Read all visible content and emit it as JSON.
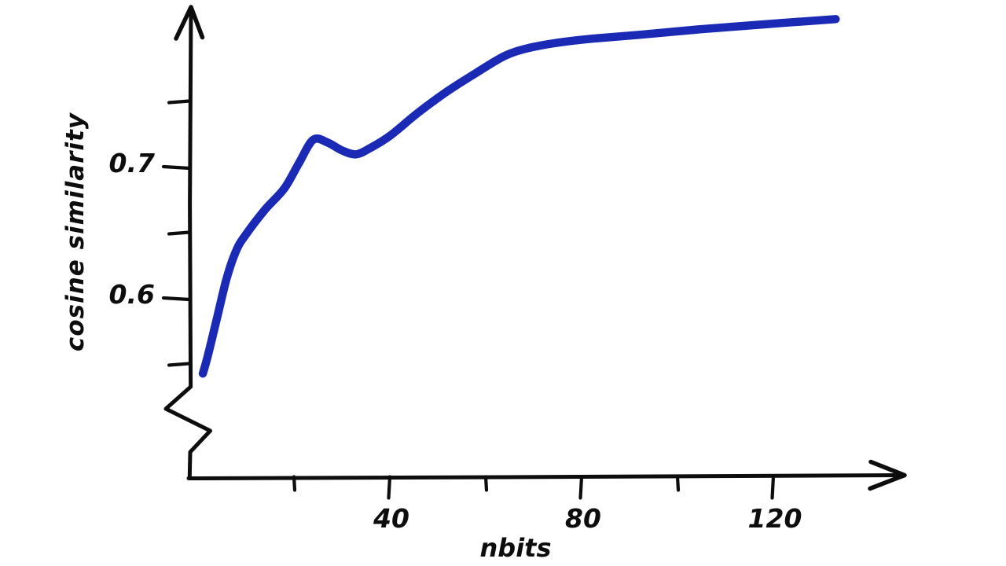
{
  "chart_data": {
    "type": "line",
    "style": "hand-drawn",
    "title": "",
    "xlabel": "nbits",
    "ylabel": "cosine similarity",
    "grid": false,
    "legend": false,
    "x_axis": {
      "min": 0,
      "max": 140,
      "arrow": true,
      "ticks": [
        {
          "value": 20,
          "label": ""
        },
        {
          "value": 40,
          "label": "40"
        },
        {
          "value": 60,
          "label": ""
        },
        {
          "value": 80,
          "label": "80"
        },
        {
          "value": 100,
          "label": ""
        },
        {
          "value": 120,
          "label": "120"
        }
      ]
    },
    "y_axis": {
      "min": 0.52,
      "max": 0.83,
      "arrow": true,
      "axis_break": true,
      "ticks": [
        {
          "value": 0.75,
          "label": ""
        },
        {
          "value": 0.7,
          "label": "0.7"
        },
        {
          "value": 0.65,
          "label": ""
        },
        {
          "value": 0.6,
          "label": "0.6"
        },
        {
          "value": 0.55,
          "label": ""
        }
      ]
    },
    "series": [
      {
        "name": "cosine-similarity-vs-nbits",
        "color": "#1a2ab5",
        "stroke_width": 10.5,
        "points": [
          [
            1,
            0.543
          ],
          [
            2,
            0.556
          ],
          [
            4,
            0.586
          ],
          [
            6,
            0.616
          ],
          [
            8,
            0.637
          ],
          [
            10,
            0.649
          ],
          [
            14,
            0.668
          ],
          [
            18,
            0.684
          ],
          [
            21,
            0.703
          ],
          [
            24,
            0.721
          ],
          [
            27,
            0.719
          ],
          [
            30,
            0.713
          ],
          [
            33,
            0.71
          ],
          [
            36,
            0.715
          ],
          [
            40,
            0.724
          ],
          [
            46,
            0.742
          ],
          [
            52,
            0.758
          ],
          [
            58,
            0.772
          ],
          [
            64,
            0.785
          ],
          [
            69,
            0.791
          ],
          [
            75,
            0.795
          ],
          [
            82,
            0.798
          ],
          [
            92,
            0.801
          ],
          [
            104,
            0.805
          ],
          [
            118,
            0.809
          ],
          [
            133,
            0.813
          ]
        ]
      }
    ]
  }
}
